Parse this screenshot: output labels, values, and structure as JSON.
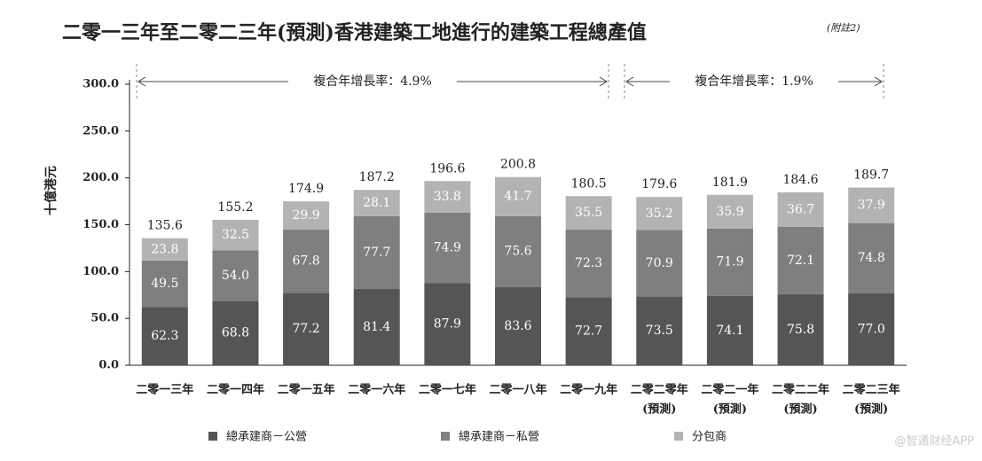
{
  "chart_data": {
    "type": "stacked_bar",
    "title": "二零一三年至二零二三年(預測)香港建築工地進行的建築工程總產值",
    "title_note": "(附註2)",
    "y_label": "十億港元",
    "categories": [
      [
        "二零一三年"
      ],
      [
        "二零一四年"
      ],
      [
        "二零一五年"
      ],
      [
        "二零一六年"
      ],
      [
        "二零一七年"
      ],
      [
        "二零一八年"
      ],
      [
        "二零一九年"
      ],
      [
        "二零二零年",
        "(預測)"
      ],
      [
        "二零二一年",
        "(預測)"
      ],
      [
        "二零二二年",
        "(預測)"
      ],
      [
        "二零二三年",
        "(預測)"
      ]
    ],
    "series": [
      {
        "name": "總承建商－公營",
        "color": "#555555",
        "values": [
          62.3,
          68.8,
          77.2,
          81.4,
          87.9,
          83.6,
          72.7,
          73.5,
          74.1,
          75.8,
          77.0
        ],
        "value_labels": [
          "62.3",
          "68.8",
          "77.2",
          "81.4",
          "87.9",
          "83.6",
          "72.7",
          "73.5",
          "74.1",
          "75.8",
          "77.0"
        ]
      },
      {
        "name": "總承建商－私營",
        "color": "#7f7f7f",
        "values": [
          49.5,
          54.0,
          67.8,
          77.7,
          74.9,
          75.6,
          72.3,
          70.9,
          71.9,
          72.1,
          74.8
        ],
        "value_labels": [
          "49.5",
          "54.0",
          "67.8",
          "77.7",
          "74.9",
          "75.6",
          "72.3",
          "70.9",
          "71.9",
          "72.1",
          "74.8"
        ]
      },
      {
        "name": "分包商",
        "color": "#b3b3b3",
        "values": [
          23.8,
          32.5,
          29.9,
          28.1,
          33.8,
          41.7,
          35.5,
          35.2,
          35.9,
          36.7,
          37.9
        ],
        "value_labels": [
          "23.8",
          "32.5",
          "29.9",
          "28.1",
          "33.8",
          "41.7",
          "35.5",
          "35.2",
          "35.9",
          "36.7",
          "37.9"
        ]
      }
    ],
    "totals": [
      135.6,
      155.2,
      174.9,
      187.2,
      196.6,
      200.8,
      180.5,
      179.6,
      181.9,
      184.6,
      189.7
    ],
    "annotations": [
      "複合年增長率：4.9%",
      "複合年增長率：1.9%"
    ],
    "ylim": [
      0,
      300
    ],
    "yticks": [
      {
        "value": 0,
        "label": "0.0"
      },
      {
        "value": 50,
        "label": "50.0"
      },
      {
        "value": 100,
        "label": "100.0"
      },
      {
        "value": 150,
        "label": "150.0"
      },
      {
        "value": 200,
        "label": "200.0"
      },
      {
        "value": 250,
        "label": "250.0"
      },
      {
        "value": 300,
        "label": "300.0"
      }
    ],
    "watermark": "@智通财经APP"
  }
}
